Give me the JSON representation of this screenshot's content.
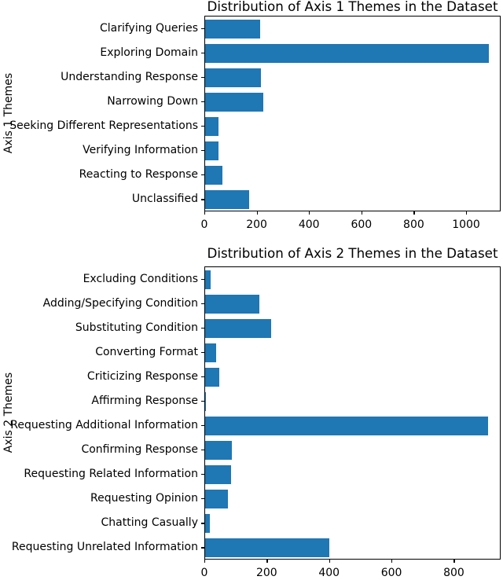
{
  "colors": {
    "bar": "#1f77b4",
    "text": "#000000",
    "spine": "#000000",
    "background": "#ffffff"
  },
  "chart_data": [
    {
      "type": "bar",
      "orientation": "horizontal",
      "title": "Distribution of Axis 1 Themes in the Dataset",
      "ylabel": "Axis 1 Themes",
      "xlabel": "",
      "categories": [
        "Clarifying Queries",
        "Exploring Domain",
        "Understanding Response",
        "Narrowing Down",
        "Seeking Different Representations",
        "Verifying Information",
        "Reacting to Response",
        "Unclassified"
      ],
      "values": [
        210,
        1085,
        213,
        222,
        52,
        50,
        66,
        169
      ],
      "xlim": [
        0,
        1132
      ],
      "xticks": [
        0,
        200,
        400,
        600,
        800,
        1000
      ],
      "bar_color": "#1f77b4",
      "grid": false,
      "legend": null
    },
    {
      "type": "bar",
      "orientation": "horizontal",
      "title": "Distribution of Axis 2 Themes in the Dataset",
      "ylabel": "Axis 2 Themes",
      "xlabel": "",
      "categories": [
        "Excluding Conditions",
        "Adding/Specifying Condition",
        "Substituting Condition",
        "Converting Format",
        "Criticizing Response",
        "Affirming Response",
        "Requesting Additional Information",
        "Confirming Response",
        "Requesting Related Information",
        "Requesting Opinion",
        "Chatting Casually",
        "Requesting Unrelated Information"
      ],
      "values": [
        17,
        173,
        212,
        36,
        46,
        2,
        906,
        86,
        82,
        74,
        16,
        397
      ],
      "xlim": [
        0,
        950
      ],
      "xticks": [
        0,
        200,
        400,
        600,
        800
      ],
      "bar_color": "#1f77b4",
      "grid": false,
      "legend": null
    }
  ]
}
